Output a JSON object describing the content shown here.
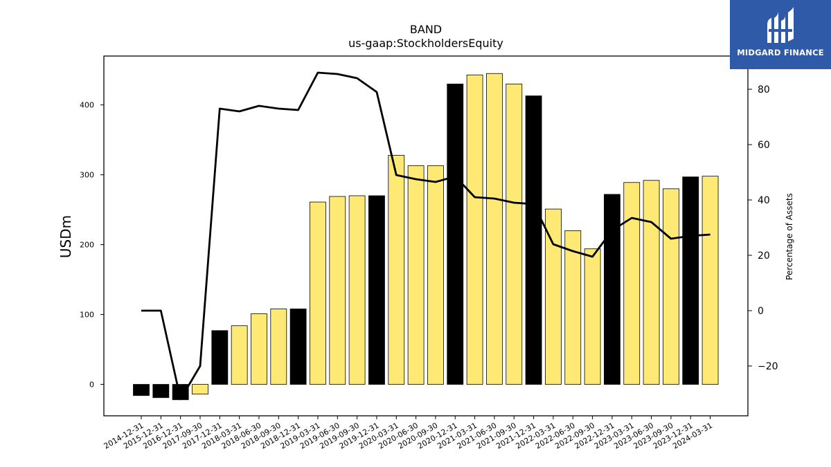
{
  "chart_data": {
    "type": "bar",
    "title": "BAND",
    "subtitle": "us-gaap:StockholdersEquity",
    "ylabel": "USDm",
    "y2label": "Percentage of Assets",
    "ylim": [
      -45,
      470
    ],
    "y2lim": [
      -38,
      92
    ],
    "yticks": [
      0,
      100,
      200,
      300,
      400
    ],
    "y2ticks": [
      -20,
      0,
      20,
      40,
      60,
      80
    ],
    "categories": [
      "2014-12-31",
      "2015-12-31",
      "2016-12-31",
      "2017-09-30",
      "2017-12-31",
      "2018-03-31",
      "2018-06-30",
      "2018-09-30",
      "2018-12-31",
      "2019-03-31",
      "2019-06-30",
      "2019-09-30",
      "2019-12-31",
      "2020-03-31",
      "2020-06-30",
      "2020-09-30",
      "2020-12-31",
      "2021-03-31",
      "2021-06-30",
      "2021-09-30",
      "2021-12-31",
      "2022-03-31",
      "2022-06-30",
      "2022-09-30",
      "2022-12-31",
      "2023-03-31",
      "2023-06-30",
      "2023-09-30",
      "2023-12-31",
      "2024-03-31"
    ],
    "series": [
      {
        "kind": "bar",
        "values": [
          -16,
          -19,
          -22,
          -14,
          77,
          84,
          101,
          108,
          108,
          261,
          269,
          270,
          270,
          328,
          313,
          313,
          430,
          443,
          445,
          430,
          413,
          251,
          220,
          194,
          272,
          289,
          292,
          280,
          297,
          298
        ],
        "fiscal_year_end": [
          true,
          true,
          true,
          false,
          true,
          false,
          false,
          false,
          true,
          false,
          false,
          false,
          true,
          false,
          false,
          false,
          true,
          false,
          false,
          false,
          true,
          false,
          false,
          false,
          true,
          false,
          false,
          false,
          true,
          false
        ]
      },
      {
        "kind": "line",
        "axis": "right",
        "values": [
          0,
          0,
          -32,
          -20,
          73,
          72,
          74,
          73,
          72.5,
          86,
          85.5,
          84,
          79,
          49,
          47.5,
          46.5,
          48.5,
          41,
          40.5,
          39,
          38.5,
          24,
          21.5,
          19.5,
          29,
          33.5,
          32,
          26,
          27,
          27.5
        ]
      }
    ],
    "colors": {
      "bar_fiscal_year_end": "#000000",
      "bar_quarter": "#fde974",
      "line": "#000000"
    }
  },
  "logo": {
    "text": "MIDGARD FINANCE",
    "bg": "#2f5aa8"
  }
}
